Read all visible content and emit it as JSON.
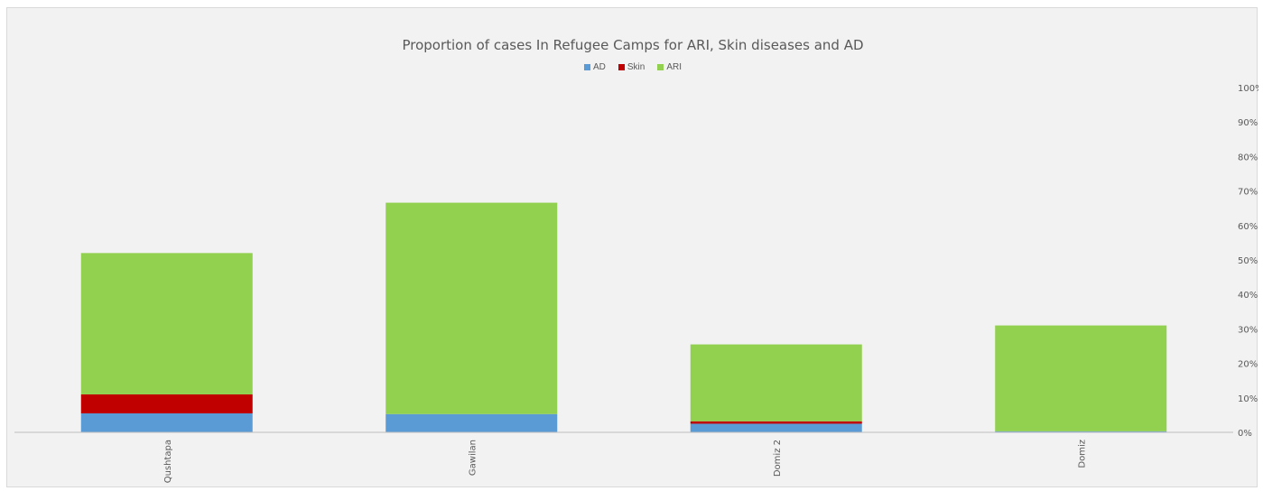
{
  "chart_data": {
    "type": "bar",
    "stacked": true,
    "title": "Proportion of cases In Refugee Camps for ARI, Skin diseases and AD",
    "categories": [
      "Qushtapa",
      "Gawilan",
      "Domiz 2",
      "Domiz"
    ],
    "series": [
      {
        "name": "AD",
        "color": "#5b9bd5",
        "values": [
          5.5,
          5.3,
          2.5,
          0.3
        ]
      },
      {
        "name": "Skin",
        "color": "#c00000",
        "values": [
          5.5,
          0,
          0.7,
          0
        ]
      },
      {
        "name": "ARI",
        "color": "#92d050",
        "values": [
          41,
          61.3,
          22.3,
          30.7
        ]
      }
    ],
    "y_ticks": [
      "0%",
      "10%",
      "20%",
      "30%",
      "40%",
      "50%",
      "60%",
      "70%",
      "80%",
      "90%",
      "100%"
    ],
    "ylim": [
      0,
      100
    ],
    "y_axis_position": "right",
    "legend_position": "top",
    "grid": false,
    "xlabel": "",
    "ylabel": ""
  }
}
